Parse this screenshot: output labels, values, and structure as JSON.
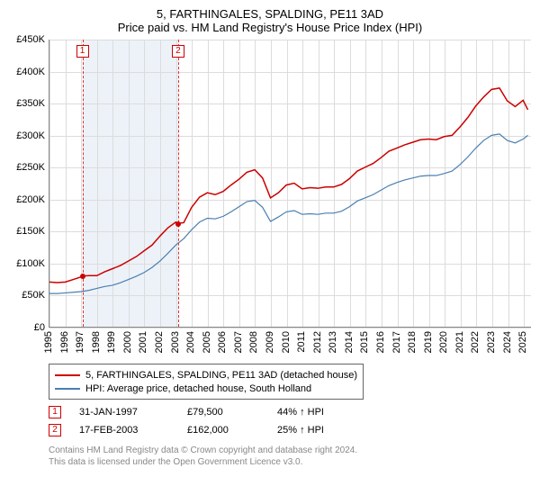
{
  "title": "5, FARTHINGALES, SPALDING, PE11 3AD",
  "subtitle": "Price paid vs. HM Land Registry's House Price Index (HPI)",
  "chart": {
    "type": "line",
    "ylabel_prefix": "£",
    "ylim": [
      0,
      450
    ],
    "yticks": [
      0,
      50,
      100,
      150,
      200,
      250,
      300,
      350,
      400,
      450
    ],
    "ytick_labels": [
      "£0",
      "£50K",
      "£100K",
      "£150K",
      "£200K",
      "£250K",
      "£300K",
      "£350K",
      "£400K",
      "£450K"
    ],
    "xlim": [
      1995,
      2025.5
    ],
    "xticks": [
      1995,
      1996,
      1997,
      1998,
      1999,
      2000,
      2001,
      2002,
      2003,
      2004,
      2005,
      2006,
      2007,
      2008,
      2009,
      2010,
      2011,
      2012,
      2013,
      2014,
      2015,
      2016,
      2017,
      2018,
      2019,
      2020,
      2021,
      2022,
      2023,
      2024,
      2025
    ],
    "shade_start": 1997.08,
    "shade_end": 2003.13,
    "background_color": "#ffffff",
    "grid_color": "#dcdcdc",
    "shade_color": "#edf2f9",
    "series": [
      {
        "name": "price_paid",
        "color": "#cc0000",
        "width": 1.5,
        "points": [
          [
            1995,
            70
          ],
          [
            1995.5,
            69
          ],
          [
            1996,
            70
          ],
          [
            1996.5,
            74
          ],
          [
            1997,
            78
          ],
          [
            1997.08,
            79.5
          ],
          [
            1997.5,
            80
          ],
          [
            1998,
            80
          ],
          [
            1998.5,
            86
          ],
          [
            1999,
            91
          ],
          [
            1999.5,
            96
          ],
          [
            2000,
            103
          ],
          [
            2000.5,
            110
          ],
          [
            2001,
            119
          ],
          [
            2001.5,
            128
          ],
          [
            2002,
            142
          ],
          [
            2002.5,
            155
          ],
          [
            2003,
            164
          ],
          [
            2003.13,
            162
          ],
          [
            2003.5,
            163
          ],
          [
            2004,
            187
          ],
          [
            2004.5,
            203
          ],
          [
            2005,
            210
          ],
          [
            2005.5,
            207
          ],
          [
            2006,
            212
          ],
          [
            2006.5,
            222
          ],
          [
            2007,
            231
          ],
          [
            2007.5,
            242
          ],
          [
            2008,
            246
          ],
          [
            2008.5,
            233
          ],
          [
            2009,
            202
          ],
          [
            2009.5,
            210
          ],
          [
            2010,
            222
          ],
          [
            2010.5,
            225
          ],
          [
            2011,
            216
          ],
          [
            2011.5,
            218
          ],
          [
            2012,
            217
          ],
          [
            2012.5,
            219
          ],
          [
            2013,
            219
          ],
          [
            2013.5,
            223
          ],
          [
            2014,
            232
          ],
          [
            2014.5,
            244
          ],
          [
            2015,
            250
          ],
          [
            2015.5,
            256
          ],
          [
            2016,
            265
          ],
          [
            2016.5,
            275
          ],
          [
            2017,
            280
          ],
          [
            2017.5,
            285
          ],
          [
            2018,
            289
          ],
          [
            2018.5,
            293
          ],
          [
            2019,
            294
          ],
          [
            2019.5,
            293
          ],
          [
            2020,
            298
          ],
          [
            2020.5,
            300
          ],
          [
            2021,
            313
          ],
          [
            2021.5,
            328
          ],
          [
            2022,
            346
          ],
          [
            2022.5,
            360
          ],
          [
            2023,
            372
          ],
          [
            2023.5,
            374
          ],
          [
            2024,
            354
          ],
          [
            2024.5,
            345
          ],
          [
            2025,
            355
          ],
          [
            2025.3,
            340
          ]
        ]
      },
      {
        "name": "hpi",
        "color": "#4a7fb0",
        "width": 1.2,
        "points": [
          [
            1995,
            52
          ],
          [
            1995.5,
            52
          ],
          [
            1996,
            53
          ],
          [
            1996.5,
            54
          ],
          [
            1997,
            55
          ],
          [
            1997.5,
            57
          ],
          [
            1998,
            60
          ],
          [
            1998.5,
            63
          ],
          [
            1999,
            65
          ],
          [
            1999.5,
            69
          ],
          [
            2000,
            74
          ],
          [
            2000.5,
            79
          ],
          [
            2001,
            85
          ],
          [
            2001.5,
            93
          ],
          [
            2002,
            103
          ],
          [
            2002.5,
            115
          ],
          [
            2003,
            128
          ],
          [
            2003.5,
            138
          ],
          [
            2004,
            152
          ],
          [
            2004.5,
            164
          ],
          [
            2005,
            170
          ],
          [
            2005.5,
            169
          ],
          [
            2006,
            173
          ],
          [
            2006.5,
            180
          ],
          [
            2007,
            188
          ],
          [
            2007.5,
            196
          ],
          [
            2008,
            198
          ],
          [
            2008.5,
            187
          ],
          [
            2009,
            165
          ],
          [
            2009.5,
            172
          ],
          [
            2010,
            180
          ],
          [
            2010.5,
            182
          ],
          [
            2011,
            176
          ],
          [
            2011.5,
            177
          ],
          [
            2012,
            176
          ],
          [
            2012.5,
            178
          ],
          [
            2013,
            178
          ],
          [
            2013.5,
            181
          ],
          [
            2014,
            188
          ],
          [
            2014.5,
            197
          ],
          [
            2015,
            202
          ],
          [
            2015.5,
            207
          ],
          [
            2016,
            214
          ],
          [
            2016.5,
            221
          ],
          [
            2017,
            226
          ],
          [
            2017.5,
            230
          ],
          [
            2018,
            233
          ],
          [
            2018.5,
            236
          ],
          [
            2019,
            237
          ],
          [
            2019.5,
            237
          ],
          [
            2020,
            240
          ],
          [
            2020.5,
            244
          ],
          [
            2021,
            254
          ],
          [
            2021.5,
            266
          ],
          [
            2022,
            280
          ],
          [
            2022.5,
            292
          ],
          [
            2023,
            300
          ],
          [
            2023.5,
            302
          ],
          [
            2024,
            292
          ],
          [
            2024.5,
            288
          ],
          [
            2025,
            294
          ],
          [
            2025.3,
            300
          ]
        ]
      }
    ],
    "markers": [
      {
        "idx": "1",
        "x": 1997.08,
        "y": 79.5
      },
      {
        "idx": "2",
        "x": 2003.13,
        "y": 162
      }
    ]
  },
  "legend": {
    "items": [
      {
        "color": "#cc0000",
        "label": "5, FARTHINGALES, SPALDING, PE11 3AD (detached house)"
      },
      {
        "color": "#4a7fb0",
        "label": "HPI: Average price, detached house, South Holland"
      }
    ]
  },
  "sales": [
    {
      "idx": "1",
      "date": "31-JAN-1997",
      "price": "£79,500",
      "delta": "44% ↑ HPI"
    },
    {
      "idx": "2",
      "date": "17-FEB-2003",
      "price": "£162,000",
      "delta": "25% ↑ HPI"
    }
  ],
  "footer": {
    "line1": "Contains HM Land Registry data © Crown copyright and database right 2024.",
    "line2": "This data is licensed under the Open Government Licence v3.0."
  }
}
